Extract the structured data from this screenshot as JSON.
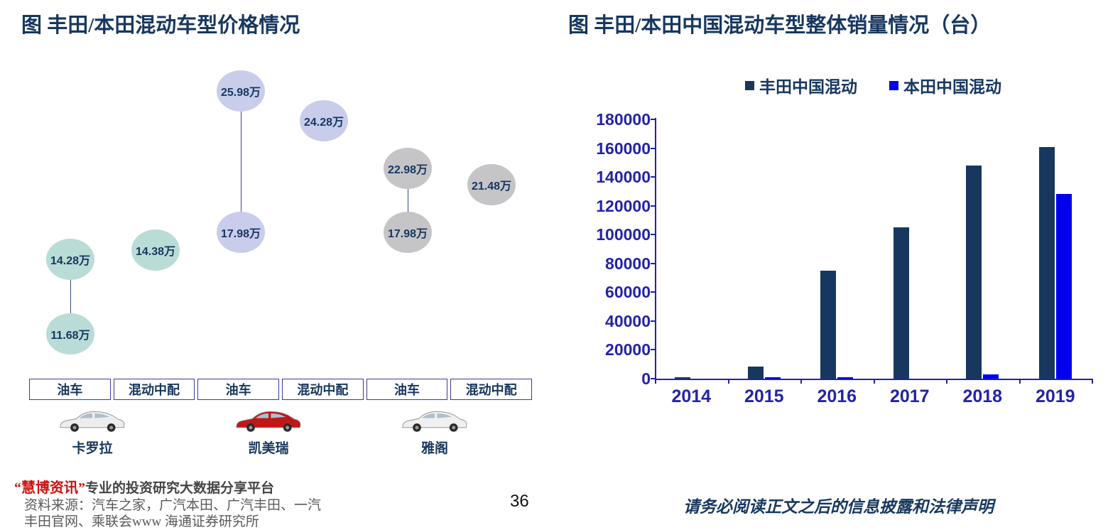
{
  "left_chart": {
    "title": "图 丰田/本田混动车型价格情况"
  },
  "right_chart": {
    "title": "图 丰田/本田中国混动车型整体销量情况（台）"
  },
  "footer": {
    "watermark_brand": "“慧博资讯”",
    "watermark_tagline": "专业的投资研究大数据分享平台",
    "source_line1": "资料来源：汽车之家，广汽本田、广汽丰田、一汽",
    "source_line2": "丰田官网、乘联会www 海通证券研究所",
    "page_number": "36",
    "disclaimer": "请务必阅读正文之后的信息披露和法律声明"
  },
  "chart_data": [
    {
      "type": "scatter",
      "title": "图 丰田/本田混动车型价格情况",
      "unit": "万",
      "columns": [
        "油车",
        "混动中配",
        "油车",
        "混动中配",
        "油车",
        "混动中配"
      ],
      "group_colors": [
        "#b9dcd6",
        "#c9cdeb",
        "#c5c5c7"
      ],
      "cars": [
        {
          "name": "卡罗拉",
          "body_color": "#ededed"
        },
        {
          "name": "凯美瑞",
          "body_color": "#c01818"
        },
        {
          "name": "雅阁",
          "body_color": "#f0f0f0"
        }
      ],
      "points": [
        {
          "label": "14.28万",
          "value": 14.28,
          "col": 0,
          "y": 285,
          "group": 0
        },
        {
          "label": "11.68万",
          "value": 11.68,
          "col": 0,
          "y": 390,
          "group": 0
        },
        {
          "label": "14.38万",
          "value": 14.38,
          "col": 1,
          "y": 272,
          "group": 0
        },
        {
          "label": "25.98万",
          "value": 25.98,
          "col": 2,
          "y": 48,
          "group": 1
        },
        {
          "label": "17.98万",
          "value": 17.98,
          "col": 2,
          "y": 247,
          "group": 1
        },
        {
          "label": "24.28万",
          "value": 24.28,
          "col": 3,
          "y": 90,
          "group": 1
        },
        {
          "label": "22.98万",
          "value": 22.98,
          "col": 4,
          "y": 157,
          "group": 2
        },
        {
          "label": "17.98万",
          "value": 17.98,
          "col": 4,
          "y": 247,
          "group": 2
        },
        {
          "label": "21.48万",
          "value": 21.48,
          "col": 5,
          "y": 180,
          "group": 2
        }
      ],
      "links": [
        [
          0,
          1
        ],
        [
          3,
          4
        ],
        [
          6,
          7
        ]
      ]
    },
    {
      "type": "bar",
      "title": "图 丰田/本田中国混动车型整体销量情况（台）",
      "categories": [
        "2014",
        "2015",
        "2016",
        "2017",
        "2018",
        "2019"
      ],
      "series": [
        {
          "name": "丰田中国混动",
          "color": "#17375e",
          "values": [
            1200,
            8400,
            75000,
            105000,
            148000,
            161000
          ]
        },
        {
          "name": "本田中国混动",
          "color": "#0000ee",
          "values": [
            0,
            500,
            600,
            0,
            2800,
            128000
          ]
        }
      ],
      "ylim": [
        0,
        180000
      ],
      "ytick_step": 20000,
      "grid": false,
      "legend_position": "top"
    }
  ]
}
